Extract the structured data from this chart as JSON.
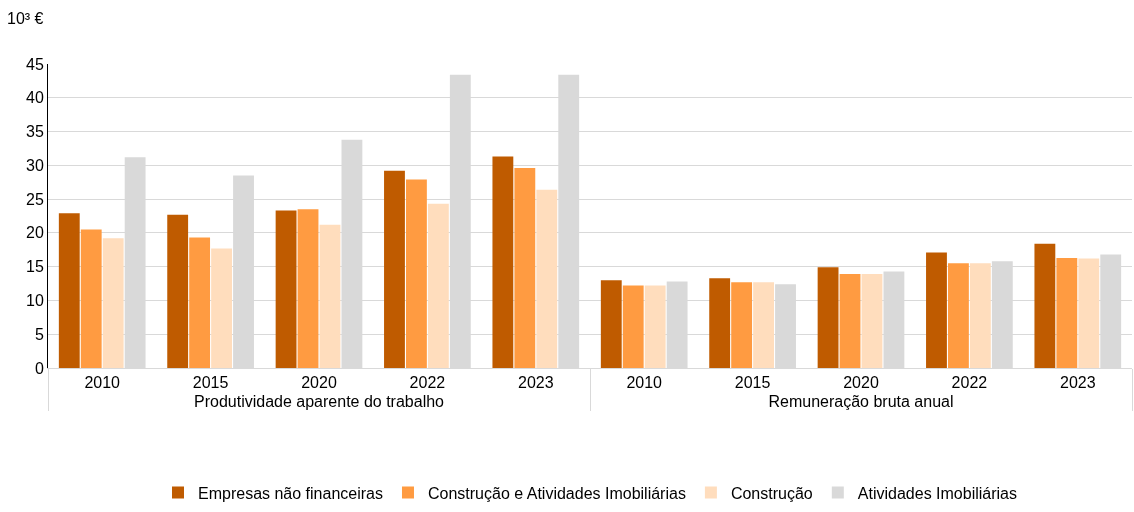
{
  "chart_data": {
    "type": "bar",
    "ylabel": "10³ €",
    "categories": [
      "2010",
      "2015",
      "2020",
      "2022",
      "2023",
      "2010",
      "2015",
      "2020",
      "2022",
      "2023"
    ],
    "annotations": [
      "Produtividade aparente do trabalho",
      "Remuneração bruta anual"
    ],
    "series": [
      {
        "name": "Empresas não financeiras",
        "color": "#bf5b00",
        "values": [
          22.9,
          22.7,
          23.3,
          29.2,
          31.3,
          13.0,
          13.3,
          14.9,
          17.1,
          18.4
        ]
      },
      {
        "name": "Construção e Atividades Imobiliárias",
        "color": "#ff9b41",
        "values": [
          20.5,
          19.3,
          23.5,
          27.9,
          29.6,
          12.2,
          12.7,
          13.9,
          15.5,
          16.3
        ]
      },
      {
        "name": "Construção",
        "color": "#ffddbd",
        "values": [
          19.2,
          17.7,
          21.2,
          24.3,
          26.4,
          12.2,
          12.7,
          13.9,
          15.5,
          16.2
        ]
      },
      {
        "name": "Atividades Imobiliárias",
        "color": "#d9d9d9",
        "values": [
          31.2,
          28.5,
          33.8,
          43.4,
          43.4,
          12.8,
          12.4,
          14.3,
          15.8,
          16.8
        ]
      }
    ],
    "ylim": [
      0,
      45
    ],
    "yticks": [
      0,
      5,
      10,
      15,
      20,
      25,
      30,
      35,
      40,
      45
    ],
    "grid": "y",
    "legend": "bottom"
  }
}
